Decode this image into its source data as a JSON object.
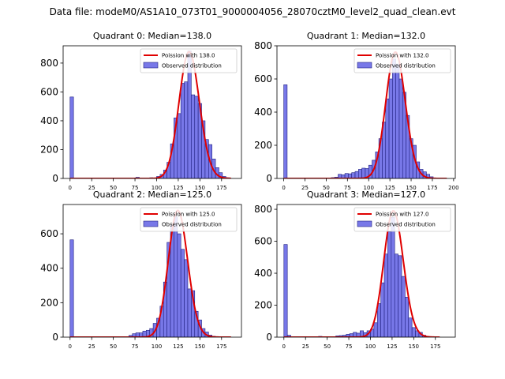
{
  "figure": {
    "suptitle": "Data file: modeM0/AS1A10_073T01_9000004056_28070cztM0_level2_quad_clean.evt"
  },
  "colors": {
    "bar_fill": "#7878e8",
    "bar_edge": "#202080",
    "poisson_line": "#e00000",
    "axis": "#000000"
  },
  "chart_data": [
    {
      "type": "bar",
      "title": "Quadrant 0: Median=138.0",
      "xlim": [
        -8,
        198
      ],
      "ylim": [
        0,
        920
      ],
      "xticks": [
        0,
        25,
        50,
        75,
        100,
        125,
        150,
        175
      ],
      "yticks": [
        0,
        200,
        400,
        600,
        800
      ],
      "legend": {
        "placement": "top-right",
        "line_label": "Poission with 138.0",
        "bar_label": "Observed distribution"
      },
      "bin_width": 4,
      "bins": [
        {
          "x": 0,
          "count": 565
        },
        {
          "x": 76,
          "count": 8
        },
        {
          "x": 92,
          "count": 5
        },
        {
          "x": 100,
          "count": 14
        },
        {
          "x": 104,
          "count": 28
        },
        {
          "x": 108,
          "count": 58
        },
        {
          "x": 112,
          "count": 112
        },
        {
          "x": 116,
          "count": 240
        },
        {
          "x": 120,
          "count": 420
        },
        {
          "x": 124,
          "count": 450
        },
        {
          "x": 128,
          "count": 660
        },
        {
          "x": 132,
          "count": 670
        },
        {
          "x": 136,
          "count": 885
        },
        {
          "x": 140,
          "count": 580
        },
        {
          "x": 144,
          "count": 570
        },
        {
          "x": 148,
          "count": 520
        },
        {
          "x": 152,
          "count": 400
        },
        {
          "x": 156,
          "count": 270
        },
        {
          "x": 160,
          "count": 235
        },
        {
          "x": 164,
          "count": 135
        },
        {
          "x": 168,
          "count": 75
        },
        {
          "x": 172,
          "count": 40
        },
        {
          "x": 176,
          "count": 14
        },
        {
          "x": 180,
          "count": 5
        }
      ],
      "poisson": {
        "mean": 138.0,
        "peak": 878,
        "x_range": [
          0,
          186
        ]
      }
    },
    {
      "type": "bar",
      "title": "Quadrant 1: Median=132.0",
      "xlim": [
        -8,
        202
      ],
      "ylim": [
        0,
        800
      ],
      "xticks": [
        0,
        25,
        50,
        75,
        100,
        125,
        150,
        175,
        200
      ],
      "yticks": [
        0,
        200,
        400,
        600,
        800
      ],
      "legend": {
        "placement": "top-right",
        "line_label": "Poission with 132.0",
        "bar_label": "Observed distribution"
      },
      "bin_width": 4,
      "bins": [
        {
          "x": 0,
          "count": 565
        },
        {
          "x": 56,
          "count": 5
        },
        {
          "x": 60,
          "count": 8
        },
        {
          "x": 64,
          "count": 25
        },
        {
          "x": 68,
          "count": 22
        },
        {
          "x": 72,
          "count": 30
        },
        {
          "x": 76,
          "count": 28
        },
        {
          "x": 80,
          "count": 35
        },
        {
          "x": 84,
          "count": 42
        },
        {
          "x": 88,
          "count": 55
        },
        {
          "x": 92,
          "count": 62
        },
        {
          "x": 96,
          "count": 60
        },
        {
          "x": 100,
          "count": 80
        },
        {
          "x": 104,
          "count": 110
        },
        {
          "x": 108,
          "count": 160
        },
        {
          "x": 112,
          "count": 240
        },
        {
          "x": 116,
          "count": 340
        },
        {
          "x": 120,
          "count": 480
        },
        {
          "x": 124,
          "count": 600
        },
        {
          "x": 128,
          "count": 720
        },
        {
          "x": 132,
          "count": 690
        },
        {
          "x": 136,
          "count": 600
        },
        {
          "x": 140,
          "count": 520
        },
        {
          "x": 144,
          "count": 380
        },
        {
          "x": 148,
          "count": 240
        },
        {
          "x": 152,
          "count": 200
        },
        {
          "x": 156,
          "count": 100
        },
        {
          "x": 160,
          "count": 55
        },
        {
          "x": 164,
          "count": 40
        },
        {
          "x": 168,
          "count": 25
        },
        {
          "x": 172,
          "count": 10
        }
      ],
      "poisson": {
        "mean": 132.0,
        "peak": 762,
        "x_range": [
          0,
          192
        ]
      }
    },
    {
      "type": "bar",
      "title": "Quadrant 2: Median=125.0",
      "xlim": [
        -8,
        198
      ],
      "ylim": [
        0,
        770
      ],
      "xticks": [
        0,
        25,
        50,
        75,
        100,
        125,
        150,
        175
      ],
      "yticks": [
        0,
        200,
        400,
        600
      ],
      "legend": {
        "placement": "top-right",
        "line_label": "Poission with 125.0",
        "bar_label": "Observed distribution"
      },
      "bin_width": 4,
      "bins": [
        {
          "x": 0,
          "count": 565
        },
        {
          "x": 68,
          "count": 10
        },
        {
          "x": 72,
          "count": 20
        },
        {
          "x": 76,
          "count": 25
        },
        {
          "x": 80,
          "count": 25
        },
        {
          "x": 84,
          "count": 35
        },
        {
          "x": 88,
          "count": 40
        },
        {
          "x": 92,
          "count": 50
        },
        {
          "x": 96,
          "count": 80
        },
        {
          "x": 100,
          "count": 110
        },
        {
          "x": 104,
          "count": 180
        },
        {
          "x": 108,
          "count": 320
        },
        {
          "x": 112,
          "count": 550
        },
        {
          "x": 116,
          "count": 650
        },
        {
          "x": 120,
          "count": 700
        },
        {
          "x": 124,
          "count": 600
        },
        {
          "x": 128,
          "count": 510
        },
        {
          "x": 132,
          "count": 450
        },
        {
          "x": 136,
          "count": 280
        },
        {
          "x": 140,
          "count": 270
        },
        {
          "x": 144,
          "count": 150
        },
        {
          "x": 148,
          "count": 100
        },
        {
          "x": 152,
          "count": 50
        },
        {
          "x": 156,
          "count": 30
        },
        {
          "x": 160,
          "count": 12
        },
        {
          "x": 164,
          "count": 5
        }
      ],
      "poisson": {
        "mean": 125.0,
        "peak": 735,
        "x_range": [
          0,
          186
        ]
      }
    },
    {
      "type": "bar",
      "title": "Quadrant 3: Median=127.0",
      "xlim": [
        -8,
        198
      ],
      "ylim": [
        0,
        830
      ],
      "xticks": [
        0,
        25,
        50,
        75,
        100,
        125,
        150,
        175
      ],
      "yticks": [
        0,
        200,
        400,
        600,
        800
      ],
      "legend": {
        "placement": "top-right",
        "line_label": "Poission with 127.0",
        "bar_label": "Observed distribution"
      },
      "bin_width": 4,
      "bins": [
        {
          "x": 0,
          "count": 580
        },
        {
          "x": 4,
          "count": 12
        },
        {
          "x": 40,
          "count": 5
        },
        {
          "x": 60,
          "count": 8
        },
        {
          "x": 64,
          "count": 10
        },
        {
          "x": 68,
          "count": 12
        },
        {
          "x": 72,
          "count": 18
        },
        {
          "x": 76,
          "count": 22
        },
        {
          "x": 80,
          "count": 30
        },
        {
          "x": 84,
          "count": 25
        },
        {
          "x": 88,
          "count": 40
        },
        {
          "x": 92,
          "count": 28
        },
        {
          "x": 96,
          "count": 40
        },
        {
          "x": 100,
          "count": 50
        },
        {
          "x": 104,
          "count": 90
        },
        {
          "x": 108,
          "count": 210
        },
        {
          "x": 112,
          "count": 340
        },
        {
          "x": 116,
          "count": 520
        },
        {
          "x": 120,
          "count": 660
        },
        {
          "x": 124,
          "count": 750
        },
        {
          "x": 128,
          "count": 520
        },
        {
          "x": 132,
          "count": 510
        },
        {
          "x": 136,
          "count": 380
        },
        {
          "x": 140,
          "count": 250
        },
        {
          "x": 144,
          "count": 120
        },
        {
          "x": 148,
          "count": 60
        },
        {
          "x": 152,
          "count": 40
        },
        {
          "x": 156,
          "count": 30
        },
        {
          "x": 160,
          "count": 12
        },
        {
          "x": 164,
          "count": 5
        }
      ],
      "poisson": {
        "mean": 127.0,
        "peak": 790,
        "x_range": [
          0,
          180
        ]
      }
    }
  ]
}
